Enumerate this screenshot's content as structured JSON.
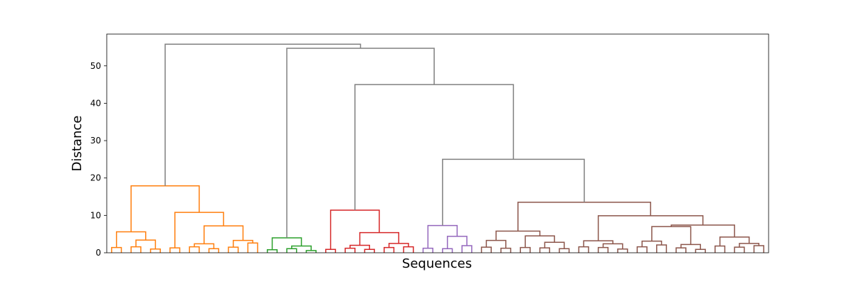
{
  "chart_data": {
    "type": "dendrogram",
    "xlabel": "Sequences",
    "ylabel": "Distance",
    "ylim": [
      0,
      58.5
    ],
    "yticks": [
      0,
      10,
      20,
      30,
      40,
      50
    ],
    "grid": false,
    "legend": "none",
    "colors": {
      "above_threshold": "#808080",
      "orange": "#ff7f0e",
      "green": "#2ca02c",
      "red": "#d62728",
      "purple": "#9467bd",
      "brown": "#8c564b"
    },
    "clusters": [
      {
        "color": "orange",
        "merge_height": 17.9,
        "children": [
          {
            "merge_height": 5.6,
            "children": [
              {
                "merge_height": 1.4
              },
              {
                "merge_height": 3.4,
                "children": [
                  {
                    "merge_height": 1.6
                  },
                  {
                    "merge_height": 1.0
                  }
                ]
              }
            ]
          },
          {
            "merge_height": 10.8,
            "children": [
              {
                "merge_height": 1.3
              },
              {
                "merge_height": 7.2,
                "children": [
                  {
                    "merge_height": 2.4,
                    "children": [
                      {
                        "merge_height": 1.6
                      },
                      {
                        "merge_height": 1.1
                      }
                    ]
                  },
                  {
                    "merge_height": 3.3,
                    "children": [
                      {
                        "merge_height": 1.5
                      },
                      {
                        "merge_height": 2.6
                      }
                    ]
                  }
                ]
              }
            ]
          }
        ]
      },
      {
        "color": "green",
        "merge_height": 4.0,
        "children": [
          {
            "merge_height": 0.8
          },
          {
            "merge_height": 1.8,
            "children": [
              {
                "merge_height": 1.1
              },
              {
                "merge_height": 0.6
              }
            ]
          }
        ]
      },
      {
        "color": "red",
        "merge_height": 11.4,
        "children": [
          {
            "merge_height": 0.9
          },
          {
            "merge_height": 5.4,
            "children": [
              {
                "merge_height": 2.0,
                "children": [
                  {
                    "merge_height": 1.2
                  },
                  {
                    "merge_height": 0.9
                  }
                ]
              },
              {
                "merge_height": 2.5,
                "children": [
                  {
                    "merge_height": 1.4
                  },
                  {
                    "merge_height": 1.6
                  }
                ]
              }
            ]
          }
        ]
      },
      {
        "color": "purple",
        "merge_height": 7.3,
        "children": [
          {
            "merge_height": 1.2
          },
          {
            "merge_height": 4.4,
            "children": [
              {
                "merge_height": 1.1
              },
              {
                "merge_height": 1.9
              }
            ]
          }
        ]
      },
      {
        "color": "brown",
        "merge_height": 13.5,
        "children": [
          {
            "merge_height": 5.8,
            "children": [
              {
                "merge_height": 3.3,
                "children": [
                  {
                    "merge_height": 1.5
                  },
                  {
                    "merge_height": 1.2
                  }
                ]
              },
              {
                "merge_height": 4.5,
                "children": [
                  {
                    "merge_height": 1.4
                  },
                  {
                    "merge_height": 2.8,
                    "children": [
                      {
                        "merge_height": 1.3
                      },
                      {
                        "merge_height": 1.1
                      }
                    ]
                  }
                ]
              }
            ]
          },
          {
            "merge_height": 9.9,
            "children": [
              {
                "merge_height": 3.2,
                "children": [
                  {
                    "merge_height": 1.6
                  },
                  {
                    "merge_height": 2.4,
                    "children": [
                      {
                        "merge_height": 1.4
                      },
                      {
                        "merge_height": 1.0
                      }
                    ]
                  }
                ]
              },
              {
                "merge_height": 7.4,
                "children": [
                  {
                    "merge_height": 7.0,
                    "children": [
                      {
                        "merge_height": 3.1,
                        "children": [
                          {
                            "merge_height": 1.6
                          },
                          {
                            "merge_height": 2.1
                          }
                        ]
                      },
                      {
                        "merge_height": 2.2,
                        "children": [
                          {
                            "merge_height": 1.3
                          },
                          {
                            "merge_height": 0.9
                          }
                        ]
                      }
                    ]
                  },
                  {
                    "merge_height": 4.2,
                    "children": [
                      {
                        "merge_height": 1.8
                      },
                      {
                        "merge_height": 2.5,
                        "children": [
                          {
                            "merge_height": 1.5
                          },
                          {
                            "merge_height": 1.9
                          }
                        ]
                      }
                    ]
                  }
                ]
              }
            ]
          }
        ]
      }
    ],
    "upper_links": [
      {
        "height": 25.0,
        "left": "purple",
        "right": "brown"
      },
      {
        "height": 45.0,
        "left": "red",
        "right": "purple+brown"
      },
      {
        "height": 54.7,
        "left": "green",
        "right": "red+purple+brown"
      },
      {
        "height": 55.8,
        "left": "orange",
        "right": "green+red+purple+brown"
      }
    ]
  }
}
